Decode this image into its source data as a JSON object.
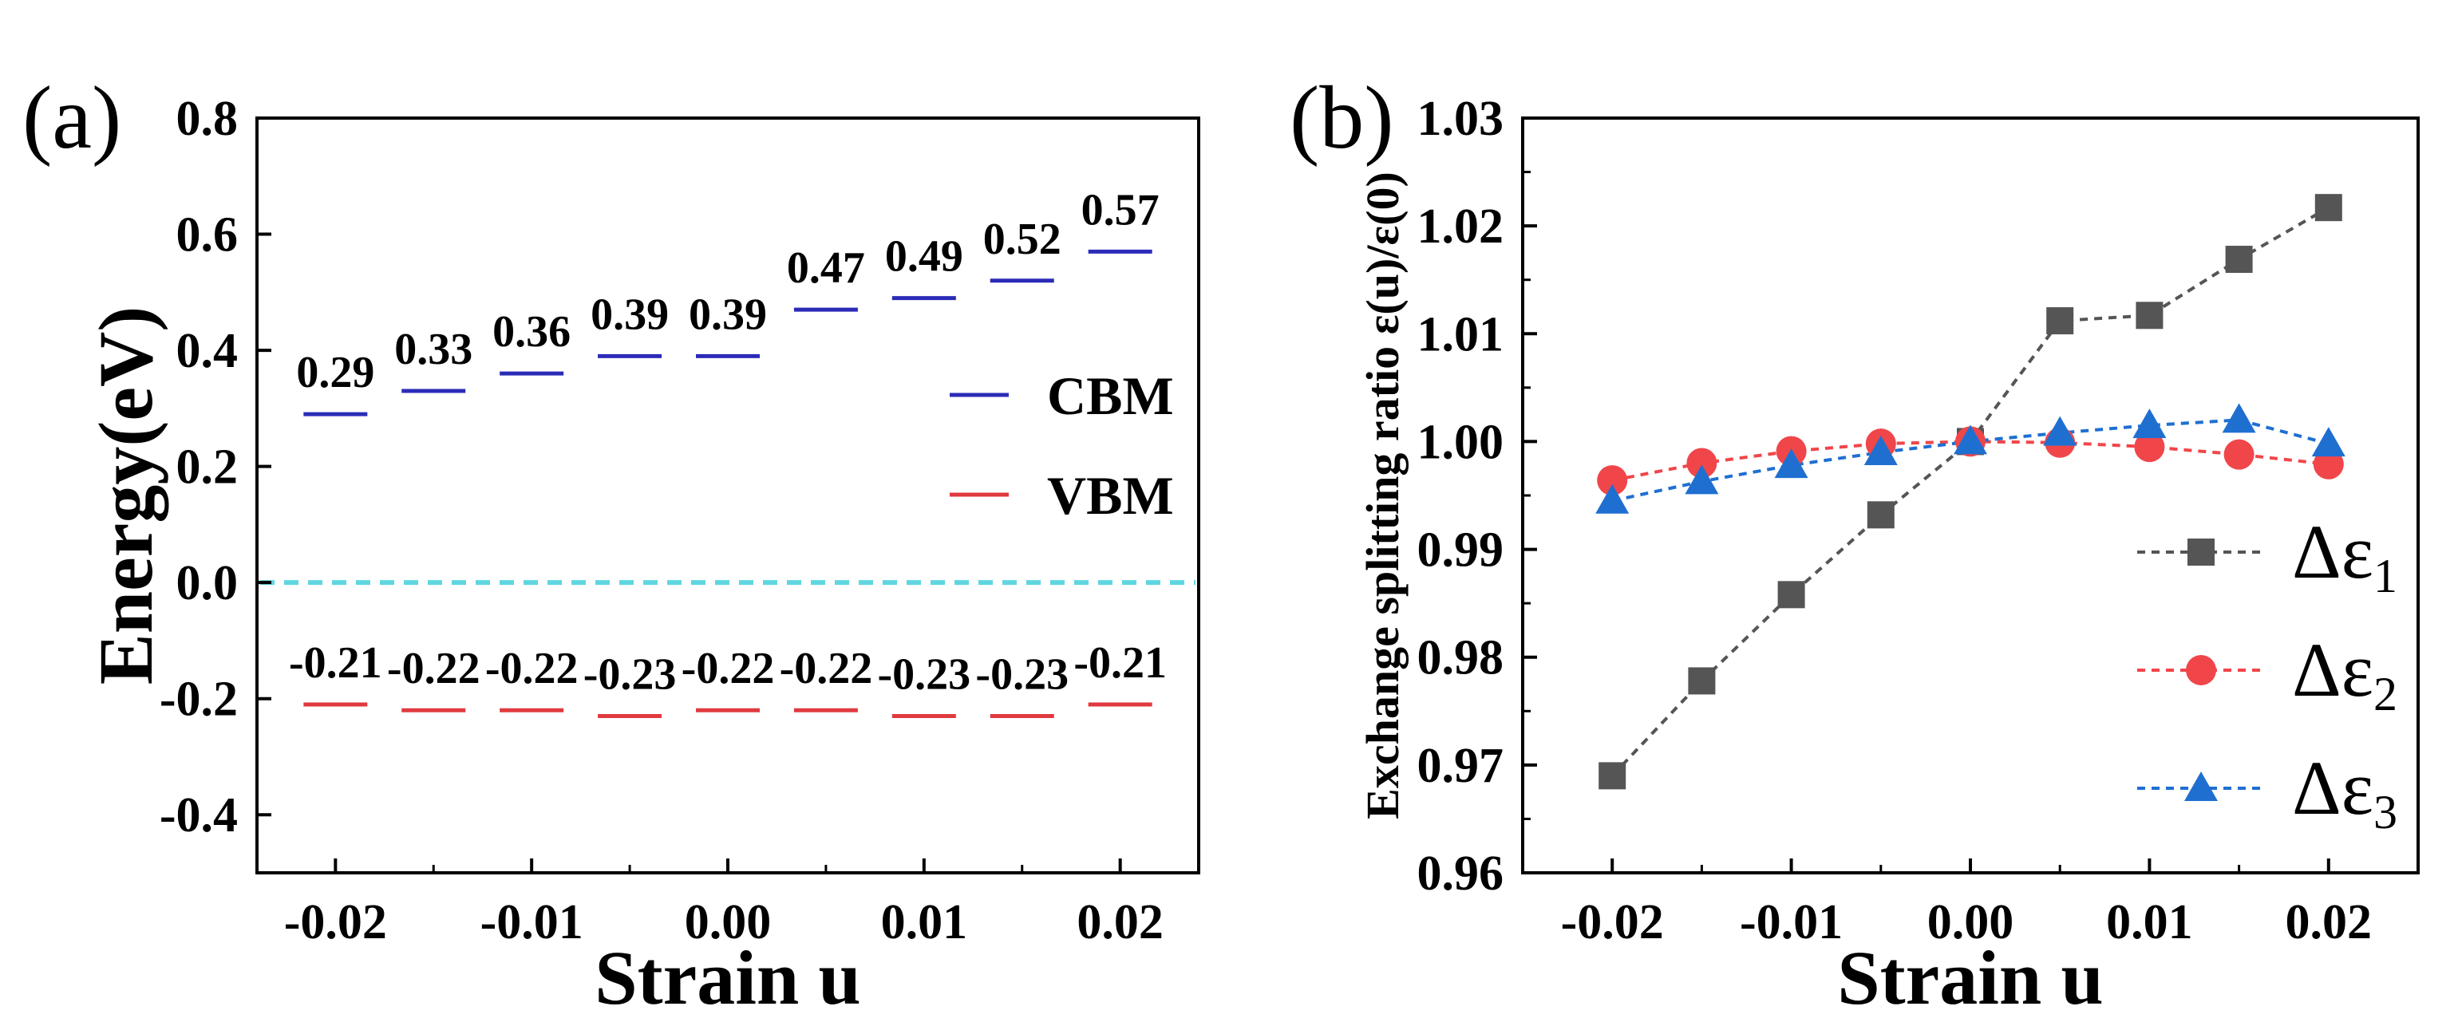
{
  "chart_data": [
    {
      "panel_label": "(a)",
      "type": "scatter",
      "xlabel": "Strain u",
      "ylabel": "Energy(eV)",
      "xlim": [
        -0.024,
        0.024
      ],
      "ylim": [
        -0.5,
        0.8
      ],
      "xticks": [
        -0.02,
        -0.01,
        0.0,
        0.01,
        0.02
      ],
      "xtick_labels": [
        "-0.02",
        "-0.01",
        "0.00",
        "0.01",
        "0.02"
      ],
      "yticks": [
        -0.4,
        -0.2,
        0.0,
        0.2,
        0.4,
        0.6,
        0.8
      ],
      "ytick_labels": [
        "-0.4",
        "-0.2",
        "0.0",
        "0.2",
        "0.4",
        "0.6",
        "0.8"
      ],
      "x": [
        -0.02,
        -0.015,
        -0.01,
        -0.005,
        0.0,
        0.005,
        0.01,
        0.015,
        0.02
      ],
      "series": [
        {
          "name": "CBM",
          "color": "#2b2bb8",
          "values": [
            0.29,
            0.33,
            0.36,
            0.39,
            0.39,
            0.47,
            0.49,
            0.52,
            0.57
          ],
          "labels": [
            "0.29",
            "0.33",
            "0.36",
            "0.39",
            "0.39",
            "0.47",
            "0.49",
            "0.52",
            "0.57"
          ]
        },
        {
          "name": "VBM",
          "color": "#e0393e",
          "values": [
            -0.21,
            -0.22,
            -0.22,
            -0.23,
            -0.22,
            -0.22,
            -0.23,
            -0.23,
            -0.21
          ],
          "labels": [
            "-0.21",
            "-0.22",
            "-0.22",
            "-0.23",
            "-0.22",
            "-0.22",
            "-0.23",
            "-0.23",
            "-0.21"
          ]
        }
      ],
      "reference_line": {
        "y": 0.0,
        "color": "#5fd6e0",
        "style": "dashed"
      },
      "legend_position": "right"
    },
    {
      "panel_label": "(b)",
      "type": "line",
      "xlabel": "Strain u",
      "ylabel": "Exchange splitting ratio  ε(u)/ε(0)",
      "xlim": [
        -0.025,
        0.025
      ],
      "ylim": [
        0.96,
        1.03
      ],
      "xticks": [
        -0.02,
        -0.01,
        0.0,
        0.01,
        0.02
      ],
      "xtick_labels": [
        "-0.02",
        "-0.01",
        "0.00",
        "0.01",
        "0.02"
      ],
      "yticks": [
        0.96,
        0.97,
        0.98,
        0.99,
        1.0,
        1.01,
        1.02,
        1.03
      ],
      "ytick_labels": [
        "0.96",
        "0.97",
        "0.98",
        "0.99",
        "1.00",
        "1.01",
        "1.02",
        "1.03"
      ],
      "x": [
        -0.02,
        -0.015,
        -0.01,
        -0.005,
        0.0,
        0.005,
        0.01,
        0.015,
        0.02
      ],
      "series": [
        {
          "name": "Δε",
          "subscript": "1",
          "marker": "square",
          "color": "#555555",
          "values": [
            0.969,
            0.9778,
            0.9858,
            0.9932,
            1.0,
            1.0112,
            1.0117,
            1.0169,
            1.0217
          ]
        },
        {
          "name": "Δε",
          "subscript": "2",
          "marker": "circle",
          "color": "#f0464a",
          "values": [
            0.9964,
            0.998,
            0.9991,
            0.9998,
            1.0,
            0.9999,
            0.9995,
            0.9988,
            0.9979
          ]
        },
        {
          "name": "Δε",
          "subscript": "3",
          "marker": "triangle",
          "color": "#1f6fd1",
          "values": [
            0.9945,
            0.9963,
            0.9978,
            0.999,
            1.0,
            1.0008,
            1.0015,
            1.002,
            0.9998
          ]
        }
      ],
      "legend_position": "bottom-right"
    }
  ]
}
